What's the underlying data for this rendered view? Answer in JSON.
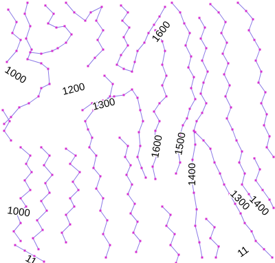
{
  "map": {
    "style": {
      "line_color": "#8a78e6",
      "vertex_color": "#d52fd0",
      "label_color": "#000000",
      "background": "#ffffff"
    },
    "contour_labels": [
      "1600",
      "1000",
      "1200",
      "1300",
      "1600",
      "1500",
      "1400",
      "1000",
      "1300",
      "1400",
      "11",
      "11"
    ]
  }
}
